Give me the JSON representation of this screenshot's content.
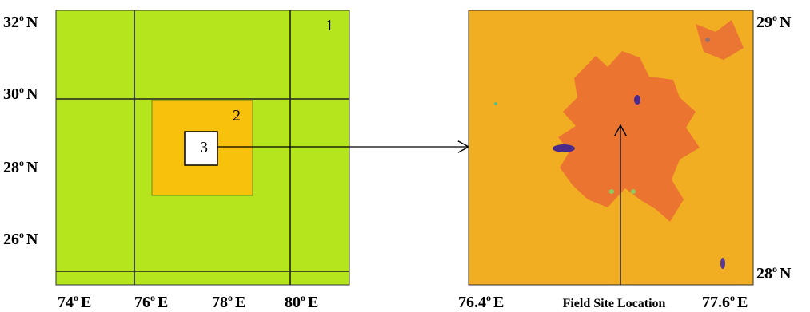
{
  "left_map": {
    "lat_labels": [
      {
        "num": "32",
        "sup": "o",
        "dir": "N"
      },
      {
        "num": "30",
        "sup": "o",
        "dir": "N"
      },
      {
        "num": "28",
        "sup": "o",
        "dir": "N"
      },
      {
        "num": "26",
        "sup": "o",
        "dir": "N"
      }
    ],
    "lon_labels": [
      {
        "num": "74",
        "sup": "o",
        "dir": "E"
      },
      {
        "num": "76",
        "sup": "o",
        "dir": "E"
      },
      {
        "num": "78",
        "sup": "o",
        "dir": "E"
      },
      {
        "num": "80",
        "sup": "o",
        "dir": "E"
      }
    ],
    "domains": [
      "1",
      "2",
      "3"
    ]
  },
  "right_map": {
    "lat_labels": [
      {
        "num": "29",
        "sup": "o",
        "dir": "N"
      },
      {
        "num": "28",
        "sup": "o",
        "dir": "N"
      }
    ],
    "lon_labels": [
      {
        "num": "76.4",
        "sup": "o",
        "dir": "E"
      },
      {
        "num": "77.6",
        "sup": "o",
        "dir": "E"
      }
    ],
    "site_label": "Field Site Location"
  }
}
